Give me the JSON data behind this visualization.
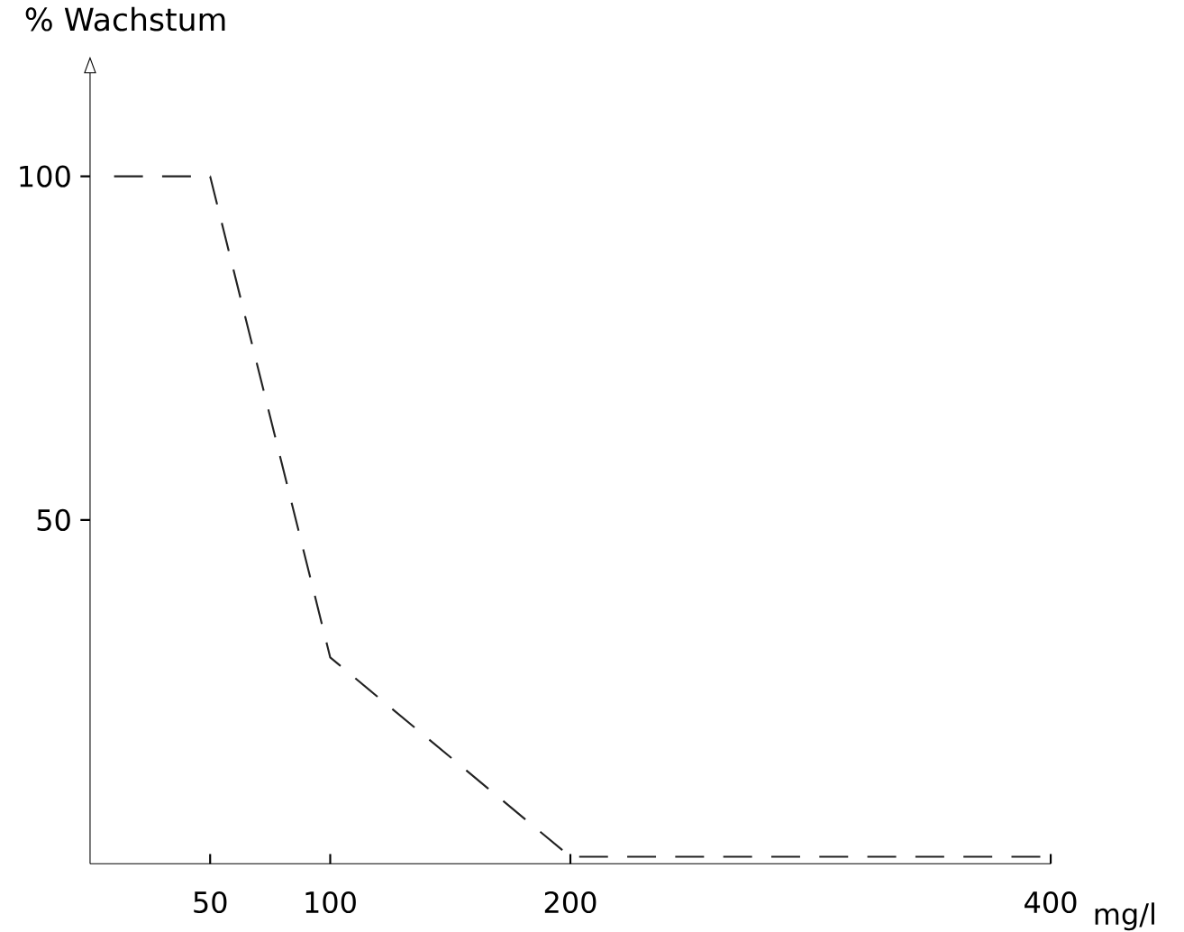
{
  "chart_data": {
    "type": "line",
    "ylabel": "% Wachstum",
    "xlabel": "mg/l",
    "x": [
      10,
      50,
      100,
      200,
      400
    ],
    "values": [
      100,
      100,
      30,
      1,
      1
    ],
    "color": "#222222",
    "line_style": "dashed",
    "marker": "none",
    "grid": false,
    "xlim": [
      0,
      400
    ],
    "ylim": [
      0,
      115
    ],
    "xticks": [
      50,
      100,
      200,
      400
    ],
    "yticks": [
      50,
      100
    ]
  }
}
